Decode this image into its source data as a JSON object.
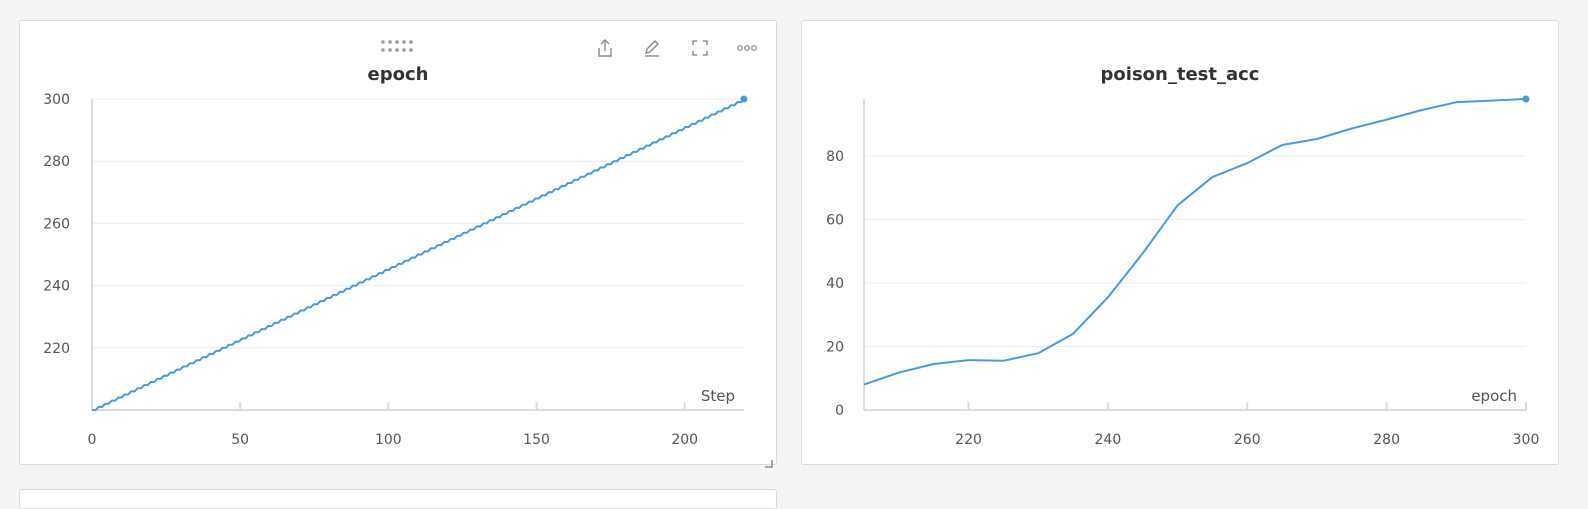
{
  "colors": {
    "series": "#4a9ad8",
    "grid": "#ececec",
    "axis": "#dcdcdc",
    "panel_border": "#d9d9d9"
  },
  "toolbar_icons": [
    "drag-handle-icon",
    "share-icon",
    "edit-icon",
    "fullscreen-icon",
    "more-options-icon"
  ],
  "chart_data": [
    {
      "type": "line",
      "title": "epoch",
      "xlabel": "Step",
      "ylabel": "",
      "xlim": [
        0,
        220
      ],
      "ylim": [
        200,
        300
      ],
      "xticks": [
        0,
        50,
        100,
        150,
        200
      ],
      "yticks": [
        220,
        240,
        260,
        280,
        300
      ],
      "grid": true,
      "series": [
        {
          "x": [
            0,
            220
          ],
          "y": [
            200,
            300
          ]
        }
      ]
    },
    {
      "type": "line",
      "title": "poison_test_acc",
      "xlabel": "epoch",
      "ylabel": "",
      "xlim": [
        205,
        300
      ],
      "ylim": [
        0,
        98
      ],
      "xticks": [
        220,
        240,
        260,
        280,
        300
      ],
      "yticks": [
        0,
        20,
        40,
        60,
        80
      ],
      "grid": true,
      "series": [
        {
          "x": [
            205,
            210,
            215,
            220,
            225,
            230,
            235,
            240,
            245,
            250,
            255,
            260,
            265,
            270,
            275,
            280,
            285,
            290,
            295,
            300
          ],
          "y": [
            8,
            11.8,
            14.5,
            15.7,
            15.5,
            17.9,
            24,
            35.5,
            49.4,
            64.5,
            73.4,
            77.8,
            83.5,
            85.4,
            88.7,
            91.5,
            94.5,
            97,
            97.5,
            98
          ]
        }
      ]
    }
  ]
}
